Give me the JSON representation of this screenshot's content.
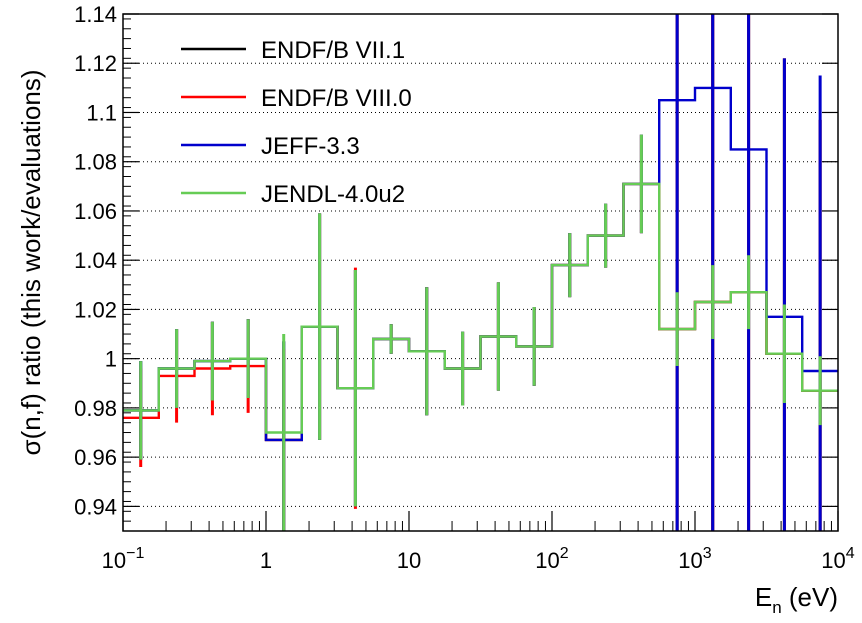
{
  "chart_data": {
    "type": "line",
    "subtype": "step-with-error-bars",
    "xlabel": "E_n (eV)",
    "ylabel": "σ(n,f) ratio (this work/evaluations)",
    "xscale": "log",
    "xlim": [
      0.1,
      10000
    ],
    "ylim": [
      0.93,
      1.14
    ],
    "grid": "y-dotted",
    "legend_position": "top-left",
    "x_ticks": [
      {
        "value": 0.1,
        "base": "10",
        "exp": "−1"
      },
      {
        "value": 1,
        "base": "1",
        "exp": ""
      },
      {
        "value": 10,
        "base": "10",
        "exp": ""
      },
      {
        "value": 100,
        "base": "10",
        "exp": "2"
      },
      {
        "value": 1000,
        "base": "10",
        "exp": "3"
      },
      {
        "value": 10000,
        "base": "10",
        "exp": "4"
      }
    ],
    "y_ticks": [
      {
        "value": 0.94,
        "label": "0.94"
      },
      {
        "value": 0.96,
        "label": "0.96"
      },
      {
        "value": 0.98,
        "label": "0.98"
      },
      {
        "value": 1.0,
        "label": "1"
      },
      {
        "value": 1.02,
        "label": "1.02"
      },
      {
        "value": 1.04,
        "label": "1.04"
      },
      {
        "value": 1.06,
        "label": "1.06"
      },
      {
        "value": 1.08,
        "label": "1.08"
      },
      {
        "value": 1.1,
        "label": "1.1"
      },
      {
        "value": 1.12,
        "label": "1.12"
      },
      {
        "value": 1.14,
        "label": "1.14"
      }
    ],
    "bin_edges": [
      0.1,
      0.178,
      0.316,
      0.562,
      1,
      1.78,
      3.16,
      5.62,
      10,
      17.8,
      31.6,
      56.2,
      100,
      178,
      316,
      562,
      1000,
      1780,
      3160,
      5620,
      10000
    ],
    "bin_centers": [
      0.133,
      0.237,
      0.422,
      0.75,
      1.33,
      2.37,
      4.22,
      7.5,
      13.3,
      23.7,
      42.2,
      75,
      133,
      237,
      422,
      750,
      1330,
      2370,
      4220,
      7500
    ],
    "series": [
      {
        "name": "ENDF/B VII.1",
        "color": "#000000",
        "values": [
          0.979,
          0.996,
          0.999,
          1.0,
          0.967,
          1.013,
          0.988,
          1.008,
          1.003,
          0.996,
          1.009,
          1.005,
          1.038,
          1.05,
          1.071,
          1.012,
          1.023,
          1.027,
          1.002,
          0.987
        ],
        "errors": [
          0.02,
          0.016,
          0.016,
          0.016,
          0.04,
          0.046,
          0.048,
          0.006,
          0.026,
          0.015,
          0.022,
          0.016,
          0.013,
          0.013,
          0.02,
          0.15,
          0.15,
          0.15,
          0.12,
          0.11
        ]
      },
      {
        "name": "ENDF/B VIII.0",
        "color": "#ff0000",
        "values": [
          0.976,
          0.993,
          0.996,
          0.997,
          0.967,
          1.013,
          0.988,
          1.008,
          1.003,
          0.996,
          1.009,
          1.005,
          1.038,
          1.05,
          1.071,
          1.012,
          1.023,
          1.027,
          1.002,
          0.987
        ],
        "errors": [
          0.02,
          0.019,
          0.019,
          0.019,
          0.037,
          0.046,
          0.049,
          0.006,
          0.026,
          0.015,
          0.022,
          0.016,
          0.013,
          0.013,
          0.02,
          0.15,
          0.15,
          0.15,
          0.12,
          0.11
        ]
      },
      {
        "name": "JEFF-3.3",
        "color": "#0000cc",
        "values": [
          0.979,
          0.996,
          0.999,
          1.0,
          0.967,
          1.013,
          0.988,
          1.008,
          1.003,
          0.996,
          1.009,
          1.005,
          1.038,
          1.05,
          1.071,
          1.105,
          1.11,
          1.085,
          1.017,
          0.995
        ],
        "errors": [
          0.02,
          0.016,
          0.016,
          0.016,
          0.04,
          0.046,
          0.048,
          0.006,
          0.026,
          0.015,
          0.022,
          0.016,
          0.013,
          0.013,
          0.02,
          0.25,
          0.25,
          0.25,
          0.105,
          0.12
        ]
      },
      {
        "name": "JENDL-4.0u2",
        "color": "#66cc55",
        "values": [
          0.979,
          0.996,
          0.999,
          1.0,
          0.97,
          1.013,
          0.988,
          1.008,
          1.003,
          0.996,
          1.009,
          1.005,
          1.038,
          1.05,
          1.071,
          1.012,
          1.023,
          1.027,
          1.002,
          0.987
        ],
        "errors": [
          0.02,
          0.016,
          0.016,
          0.016,
          0.04,
          0.046,
          0.048,
          0.006,
          0.026,
          0.015,
          0.022,
          0.016,
          0.013,
          0.013,
          0.02,
          0.015,
          0.015,
          0.015,
          0.02,
          0.014
        ]
      }
    ]
  }
}
